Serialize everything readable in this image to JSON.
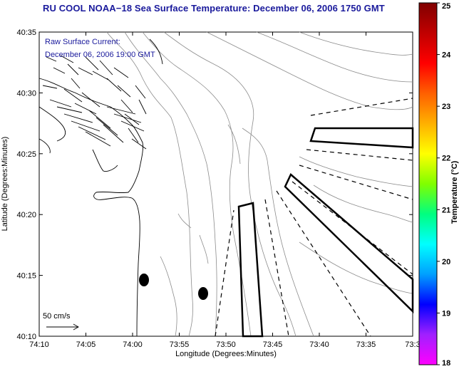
{
  "title": "RU COOL  NOAA−18  Sea Surface Temperature:  December 06, 2006 1750 GMT",
  "annotation": {
    "line1": "Raw Surface Current:",
    "line2": "December 06, 2006 19:00 GMT"
  },
  "scale": {
    "label": "50 cm/s"
  },
  "axes": {
    "xlabel": "Longitude (Degrees:Minutes)",
    "ylabel": "Latitude (Degrees:Minutes)",
    "x_ticks": [
      "74:10",
      "74:05",
      "74:00",
      "73:55",
      "73:50",
      "73:45",
      "73:40",
      "73:35",
      "73:3"
    ],
    "y_ticks": [
      "40:35",
      "40:30",
      "40:25",
      "40:20",
      "40:15",
      "40:10"
    ]
  },
  "colorbar": {
    "label": "Temperature (°C)",
    "ticks": [
      "25",
      "24",
      "23",
      "22",
      "21",
      "20",
      "19",
      "18"
    ],
    "min": 18,
    "max": 25,
    "colors": [
      "#ff00ff",
      "#a020ff",
      "#0000ff",
      "#00a0ff",
      "#00ffff",
      "#00ff80",
      "#80ff00",
      "#ffff00",
      "#ffb000",
      "#ff6000",
      "#ff0000",
      "#c00000",
      "#800000"
    ]
  },
  "colors": {
    "title": "#1a1a9c",
    "annotation": "#1a1a9c",
    "lines": "#000000",
    "contours": "#8c8c8c"
  }
}
